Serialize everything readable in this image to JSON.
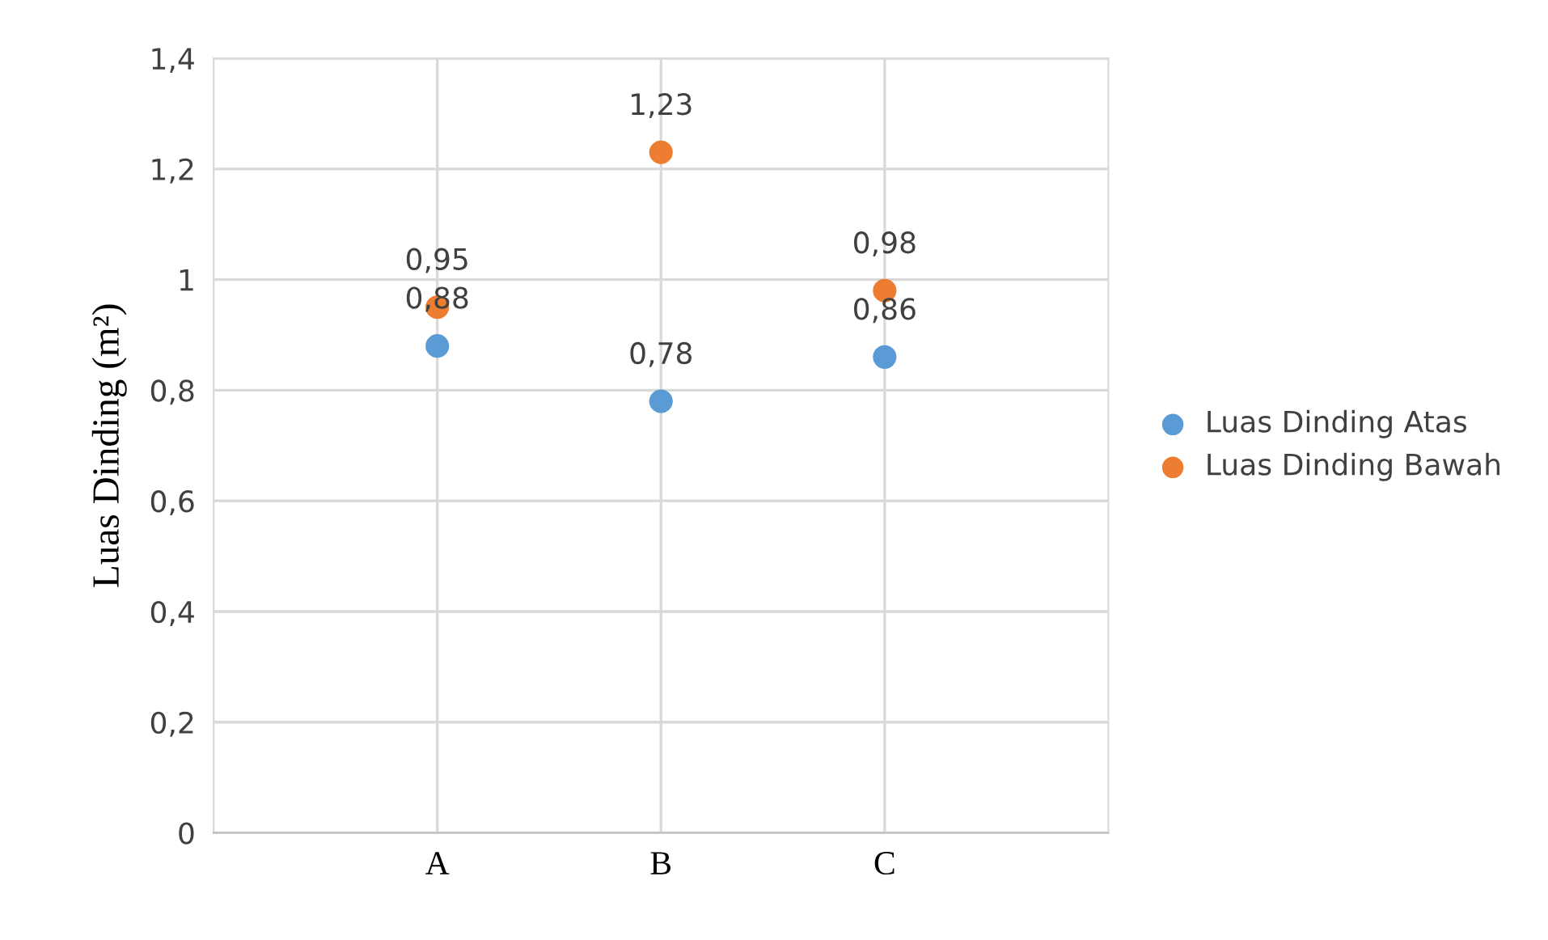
{
  "chart_data": {
    "type": "scatter",
    "ylabel": "Luas Dinding (m²)",
    "categories": [
      "A",
      "B",
      "C"
    ],
    "series": [
      {
        "name": "Luas Dinding Atas",
        "color": "#5b9bd5",
        "values": [
          0.88,
          0.78,
          0.86
        ],
        "value_labels": [
          "0,88",
          "0,78",
          "0,86"
        ]
      },
      {
        "name": "Luas Dinding Bawah",
        "color": "#ed7d31",
        "values": [
          0.95,
          1.23,
          0.98
        ],
        "value_labels": [
          "0,95",
          "1,23",
          "0,98"
        ]
      }
    ],
    "ylim": [
      0,
      1.4
    ],
    "yticks": [
      0,
      {
        "value": 0.2,
        "label": "0,2"
      },
      {
        "value": 0.4,
        "label": "0,4"
      },
      {
        "value": 0.6,
        "label": "0,6"
      },
      {
        "value": 0.8,
        "label": "0,8"
      },
      1,
      {
        "value": 1.2,
        "label": "1,2"
      },
      {
        "value": 1.4,
        "label": "1,4"
      }
    ],
    "grid": true,
    "legend": "right",
    "marker": "circle"
  }
}
